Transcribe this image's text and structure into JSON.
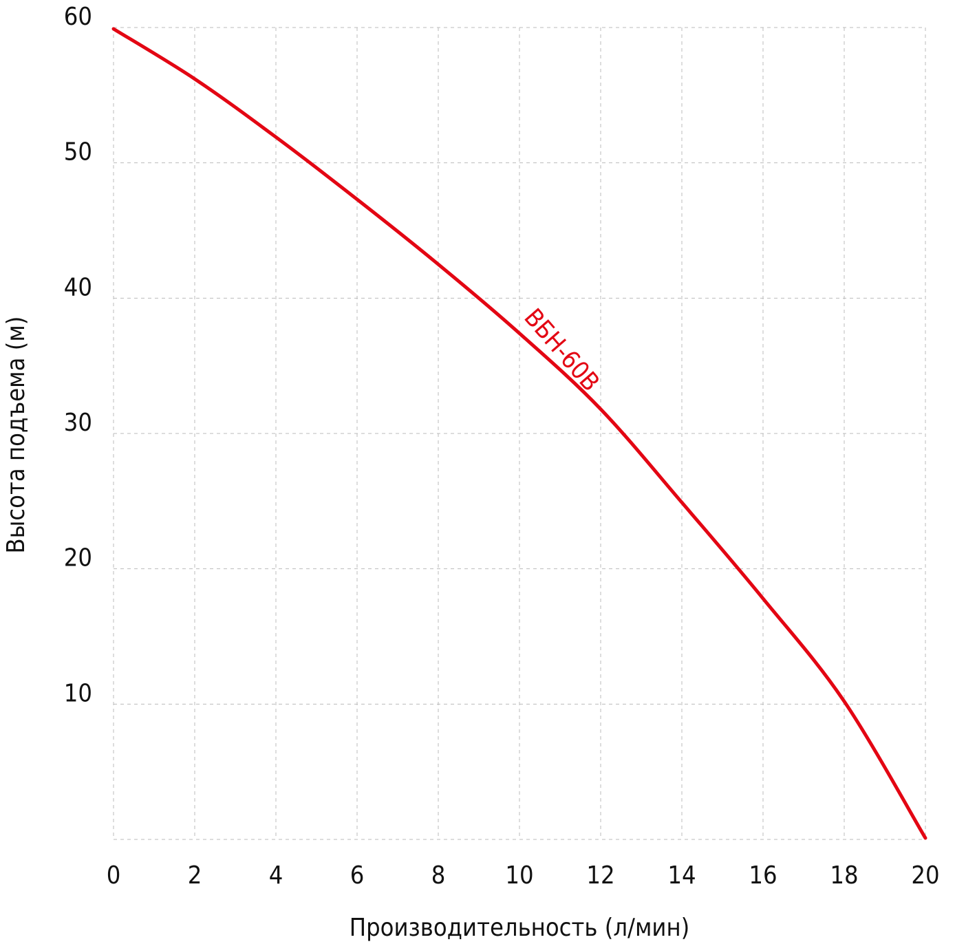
{
  "chart_data": {
    "type": "line",
    "x_label": "Производительность (л/мин)",
    "y_label": "Высота подъема (м)",
    "annotation": "ВБН-60В",
    "x": [
      0,
      2,
      4,
      6,
      8,
      10,
      12,
      14,
      16,
      18,
      20
    ],
    "series": [
      {
        "name": "ВБН-60В",
        "color": "#e30613",
        "values": [
          59.9,
          56.2,
          51.9,
          47.3,
          42.5,
          37.4,
          31.8,
          24.9,
          17.8,
          10.2,
          0.1
        ]
      }
    ],
    "xlim": [
      0,
      20
    ],
    "xticks": [
      0,
      2,
      4,
      6,
      8,
      10,
      12,
      14,
      16,
      18,
      20
    ],
    "ylim": [
      0,
      60
    ],
    "yticks": [
      10,
      20,
      30,
      40,
      50,
      60
    ],
    "grid": true
  }
}
